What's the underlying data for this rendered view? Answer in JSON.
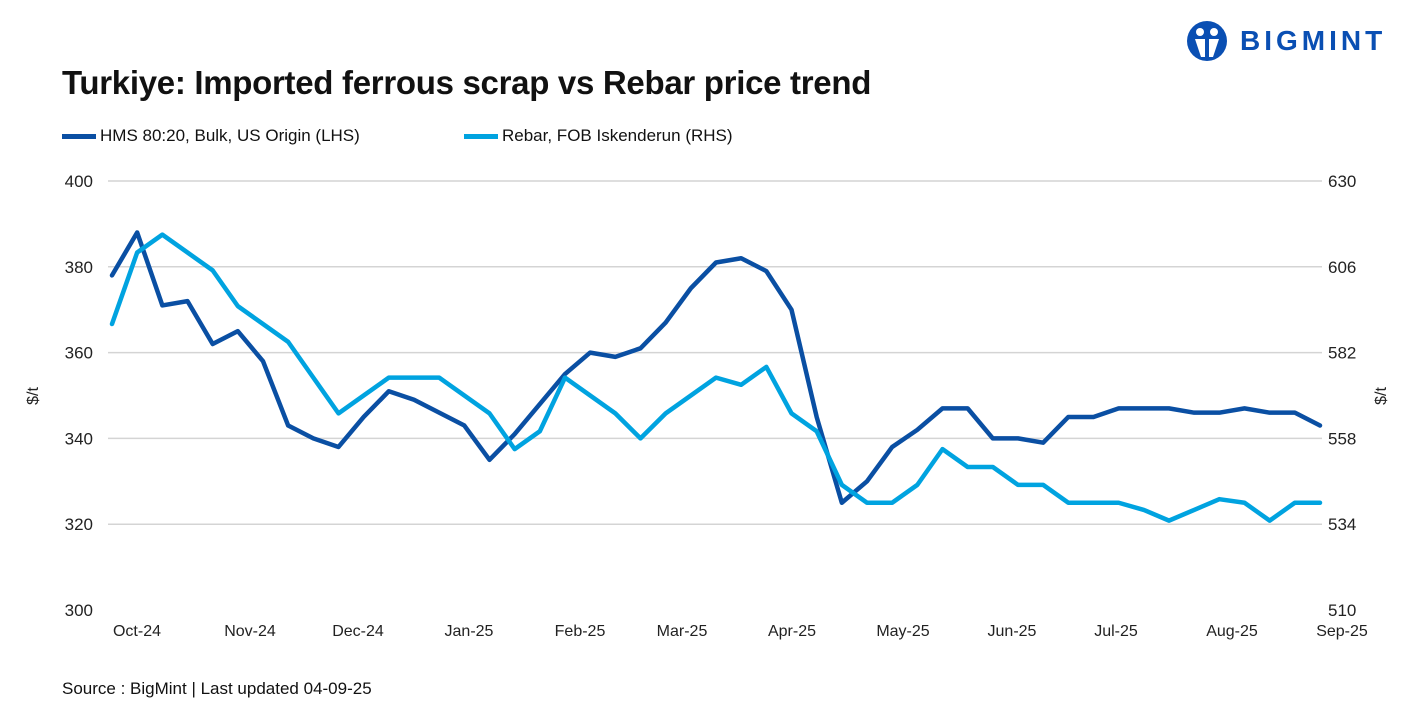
{
  "brand": {
    "name": "BIGMINT",
    "color": "#0a4fb3"
  },
  "source": "Source : BigMint | Last updated 04-09-25",
  "chart_data": {
    "type": "line",
    "title": "Turkiye: Imported ferrous scrap vs Rebar price trend",
    "ylabel_left": "$/t",
    "ylabel_right": "$/t",
    "ylim_left": [
      300,
      400
    ],
    "ylim_right": [
      510,
      630
    ],
    "yticks_left": [
      300,
      320,
      340,
      360,
      380,
      400
    ],
    "yticks_right": [
      510,
      534,
      558,
      582,
      606,
      630
    ],
    "xtick_labels": [
      "Oct-24",
      "Nov-24",
      "Dec-24",
      "Jan-25",
      "Feb-25",
      "Mar-25",
      "Apr-25",
      "May-25",
      "Jun-25",
      "Jul-25",
      "Aug-25",
      "Sep-25"
    ],
    "grid": true,
    "legend_position": "top-left",
    "series": [
      {
        "name": "HMS 80:20, Bulk, US Origin (LHS)",
        "axis": "left",
        "color": "#0a4fa3",
        "values": [
          378,
          388,
          371,
          372,
          362,
          365,
          358,
          343,
          340,
          338,
          345,
          351,
          349,
          346,
          343,
          335,
          341,
          348,
          355,
          360,
          359,
          361,
          367,
          375,
          381,
          382,
          379,
          370,
          345,
          325,
          330,
          338,
          342,
          347,
          347,
          340,
          340,
          339,
          345,
          345,
          347,
          347,
          347,
          346,
          346,
          347,
          346,
          346,
          343
        ]
      },
      {
        "name": "Rebar, FOB Iskenderun (RHS)",
        "axis": "right",
        "color": "#00a3e0",
        "values": [
          590,
          610,
          615,
          610,
          605,
          595,
          590,
          585,
          575,
          565,
          570,
          575,
          575,
          575,
          570,
          565,
          555,
          560,
          575,
          570,
          565,
          558,
          565,
          570,
          575,
          573,
          578,
          565,
          560,
          545,
          540,
          540,
          545,
          555,
          550,
          550,
          545,
          545,
          540,
          540,
          540,
          538,
          535,
          538,
          541,
          540,
          535,
          540,
          540
        ]
      }
    ]
  }
}
